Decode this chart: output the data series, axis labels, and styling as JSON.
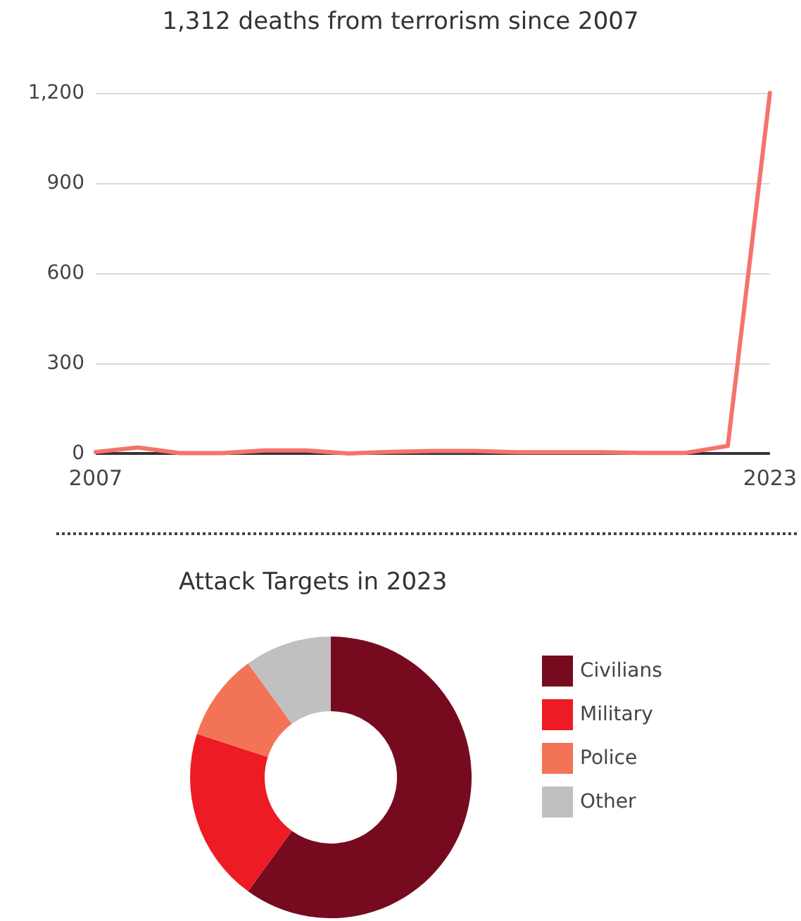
{
  "chart_data": [
    {
      "type": "line",
      "title": "1,312 deaths from terrorism since 2007",
      "categories": [
        "2007",
        null,
        null,
        null,
        null,
        null,
        null,
        null,
        null,
        null,
        null,
        null,
        null,
        null,
        null,
        null,
        "2023"
      ],
      "series": [
        {
          "color": "#f4736b",
          "values": [
            5,
            20,
            1,
            1,
            10,
            10,
            0,
            5,
            8,
            8,
            4,
            4,
            4,
            2,
            2,
            25,
            1200
          ]
        }
      ],
      "ylim": [
        0,
        1200
      ],
      "yticks": [
        0,
        300,
        600,
        900,
        {
          "value": 1200,
          "label": "1,200"
        }
      ],
      "grid": "y",
      "marker": "none",
      "line_style": "solid",
      "legend": false
    },
    {
      "type": "donut",
      "title": "Attack Targets in 2023",
      "categories": [
        "Civilians",
        "Military",
        "Police",
        "Other"
      ],
      "values": [
        60,
        20,
        10,
        10
      ],
      "colors": [
        "#760b20",
        "#ed1c24",
        "#f37356",
        "#c0c0c0"
      ],
      "legend": "right"
    }
  ]
}
